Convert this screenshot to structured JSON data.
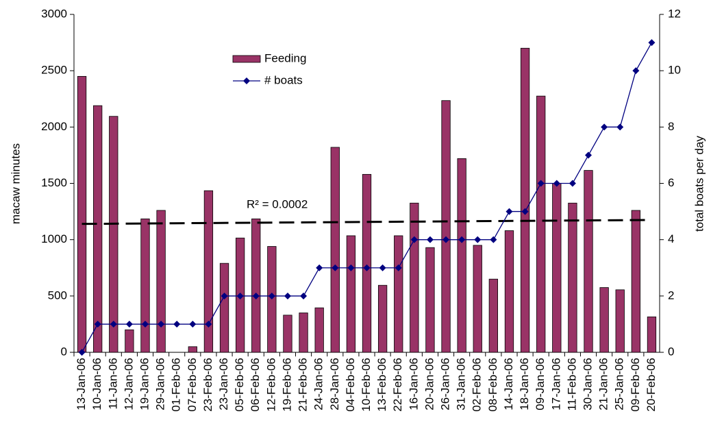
{
  "chart_data": {
    "type": "bar_line",
    "categories": [
      "13-Jan-06",
      "10-Jan-06",
      "11-Jan-06",
      "12-Jan-06",
      "19-Jan-06",
      "29-Jan-06",
      "01-Feb-06",
      "07-Feb-06",
      "23-Feb-06",
      "23-Jan-06",
      "05-Feb-06",
      "06-Feb-06",
      "12-Feb-06",
      "19-Feb-06",
      "21-Feb-06",
      "24-Jan-06",
      "28-Jan-06",
      "04-Feb-06",
      "10-Feb-06",
      "13-Feb-06",
      "22-Feb-06",
      "16-Jan-06",
      "20-Jan-06",
      "26-Jan-06",
      "31-Jan-06",
      "02-Feb-06",
      "08-Feb-06",
      "14-Jan-06",
      "18-Jan-06",
      "09-Jan-06",
      "17-Jan-06",
      "11-Feb-06",
      "30-Jan-06",
      "21-Jan-06",
      "25-Jan-06",
      "09-Feb-06",
      "20-Feb-06"
    ],
    "series": [
      {
        "name": "Feeding",
        "color": "#993366",
        "kind": "bar",
        "values": [
          2450,
          2190,
          2095,
          200,
          1185,
          1260,
          0,
          50,
          1435,
          790,
          1015,
          1185,
          940,
          330,
          350,
          395,
          1820,
          1035,
          1580,
          595,
          1035,
          1325,
          930,
          2235,
          1720,
          950,
          650,
          1080,
          2700,
          2275,
          1500,
          1325,
          1615,
          575,
          555,
          1260,
          315
        ]
      },
      {
        "name": "# boats",
        "color": "#000080",
        "kind": "line",
        "axis": "y2",
        "values": [
          0,
          1,
          1,
          1,
          1,
          1,
          1,
          1,
          1,
          2,
          2,
          2,
          2,
          2,
          2,
          3,
          3,
          3,
          3,
          3,
          3,
          4,
          4,
          4,
          4,
          4,
          4,
          5,
          5,
          6,
          6,
          6,
          7,
          8,
          8,
          10,
          11
        ]
      }
    ],
    "trendline": {
      "label": "R² = 0.0002",
      "values": [
        1140,
        1175
      ]
    },
    "ylabel": "macaw minutes",
    "y2label": "total boats per day",
    "ylim": [
      0,
      3000
    ],
    "yticks": [
      0,
      500,
      1000,
      1500,
      2000,
      2500,
      3000
    ],
    "y2lim": [
      0,
      12
    ],
    "y2ticks": [
      0,
      2,
      4,
      6,
      8,
      10,
      12
    ]
  }
}
